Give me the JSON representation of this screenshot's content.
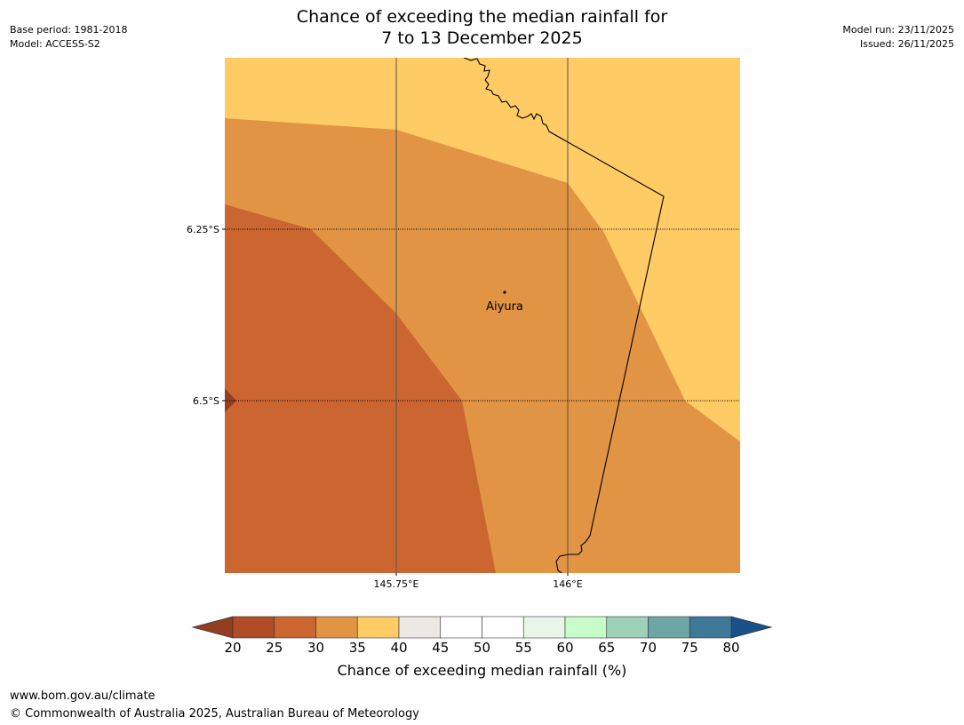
{
  "title": {
    "line1": "Chance of exceeding the median rainfall for",
    "line2": "7 to 13 December 2025"
  },
  "meta_left": {
    "base_period": "Base period: 1981-2018",
    "model": "Model: ACCESS-S2"
  },
  "meta_right": {
    "model_run": "Model run: 23/11/2025",
    "issued": "Issued: 26/11/2025"
  },
  "map": {
    "lat_labels": [
      "6.25°S",
      "6.5°S"
    ],
    "lon_labels": [
      "145.75°E",
      "146°E"
    ],
    "place": {
      "name": "Aiyura"
    },
    "colors": {
      "c35_40": "#fecb65",
      "c30_35": "#e09444",
      "c25_30": "#cb6630",
      "c20_25": "#b04d26",
      "below20": "#933e21"
    }
  },
  "colorbar": {
    "ticks": [
      "20",
      "25",
      "30",
      "35",
      "40",
      "45",
      "50",
      "55",
      "60",
      "65",
      "70",
      "75",
      "80"
    ],
    "bins": [
      "#b04d26",
      "#cb6630",
      "#e09444",
      "#fecb65",
      "#ece8e4",
      "#ffffff",
      "#ffffff",
      "#e8f6e8",
      "#c8fcc8",
      "#9ed2b8",
      "#6ea6a6",
      "#3f7898"
    ],
    "under_color": "#933e21",
    "over_color": "#18508a",
    "label": "Chance of exceeding median rainfall (%)"
  },
  "footer": {
    "url": "www.bom.gov.au/climate",
    "copyright": "© Commonwealth of Australia 2025, Australian Bureau of Meteorology"
  }
}
